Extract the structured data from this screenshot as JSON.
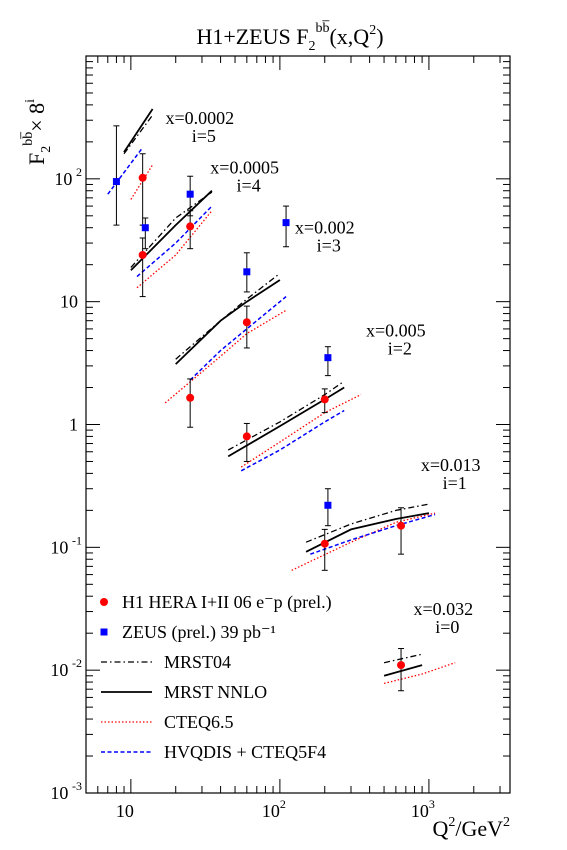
{
  "chart_data": {
    "type": "scatter",
    "title": "H1+ZEUS F",
    "title_sub": "2",
    "title_sup": "bb̅",
    "title_tail": "(x,Q",
    "title_tail_sup": "2",
    "title_end": ")",
    "ylabel_main": "F",
    "ylabel_sub": "2",
    "ylabel_sup": "bb̅",
    "ylabel_times": "× 8",
    "ylabel_exp": "i",
    "xlabel_main": "Q",
    "xlabel_sup": "2",
    "xlabel_mid": "/GeV",
    "xlabel_sup2": "2",
    "x_scale": "log",
    "y_scale": "log",
    "xlim": [
      5,
      3500
    ],
    "ylim": [
      0.001,
      1000
    ],
    "x_ticks": [
      {
        "value": 10,
        "base": "10",
        "exp": ""
      },
      {
        "value": 100,
        "base": "10",
        "exp": "2"
      },
      {
        "value": 1000,
        "base": "10",
        "exp": "3"
      }
    ],
    "y_ticks": [
      {
        "value": 0.001,
        "base": "10",
        "exp": "-3"
      },
      {
        "value": 0.01,
        "base": "10",
        "exp": "-2"
      },
      {
        "value": 0.1,
        "base": "10",
        "exp": "-1"
      },
      {
        "value": 1,
        "base": "1",
        "exp": ""
      },
      {
        "value": 10,
        "base": "10",
        "exp": ""
      },
      {
        "value": 100,
        "base": "10",
        "exp": "2"
      }
    ],
    "bin_labels": [
      {
        "x_text": "x=0.0002",
        "i_text": "i=5",
        "q2": 29,
        "y": 280
      },
      {
        "x_text": "x=0.0005",
        "i_text": "i=4",
        "q2": 58,
        "y": 111
      },
      {
        "x_text": "x=0.002",
        "i_text": "i=3",
        "q2": 200,
        "y": 36
      },
      {
        "x_text": "x=0.005",
        "i_text": "i=2",
        "q2": 600,
        "y": 5.2
      },
      {
        "x_text": "x=0.013",
        "i_text": "i=1",
        "q2": 1400,
        "y": 0.42
      },
      {
        "x_text": "x=0.032",
        "i_text": "i=0",
        "q2": 1250,
        "y": 0.028
      }
    ],
    "series": [
      {
        "name": "H1 HERA I+II 06 e⁻p  (prel.)",
        "marker": "circle",
        "color": "#ff0000",
        "points": [
          {
            "x": 12,
            "y": 102,
            "lo": 42,
            "hi": 160
          },
          {
            "x": 12,
            "y": 24,
            "lo": 11,
            "hi": 33
          },
          {
            "x": 25,
            "y": 41,
            "lo": 27,
            "hi": 55
          },
          {
            "x": 25,
            "y": 1.65,
            "lo": 0.95,
            "hi": 2.35
          },
          {
            "x": 60,
            "y": 6.8,
            "lo": 4.2,
            "hi": 9.2
          },
          {
            "x": 60,
            "y": 0.8,
            "lo": 0.5,
            "hi": 1.02
          },
          {
            "x": 200,
            "y": 1.6,
            "lo": 1.25,
            "hi": 1.95
          },
          {
            "x": 200,
            "y": 0.107,
            "lo": 0.065,
            "hi": 0.14
          },
          {
            "x": 650,
            "y": 0.15,
            "lo": 0.088,
            "hi": 0.21
          },
          {
            "x": 650,
            "y": 0.011,
            "lo": 0.0068,
            "hi": 0.015
          }
        ]
      },
      {
        "name": "ZEUS (prel.) 39 pb⁻¹",
        "marker": "square",
        "color": "#0000ff",
        "points": [
          {
            "x": 8,
            "y": 95,
            "lo": 42,
            "hi": 270
          },
          {
            "x": 12.5,
            "y": 40,
            "lo": 27,
            "hi": 48
          },
          {
            "x": 25,
            "y": 75,
            "lo": 50,
            "hi": 105
          },
          {
            "x": 60,
            "y": 17.5,
            "lo": 12,
            "hi": 25
          },
          {
            "x": 110,
            "y": 44,
            "lo": 28,
            "hi": 60
          },
          {
            "x": 210,
            "y": 3.5,
            "lo": 2.5,
            "hi": 4.3
          },
          {
            "x": 210,
            "y": 0.22,
            "lo": 0.15,
            "hi": 0.3
          }
        ]
      }
    ],
    "curves": [
      {
        "name": "MRST04",
        "style": "dashdot",
        "color": "#000000",
        "segments": [
          [
            [
              9,
              160
            ],
            [
              14,
              330
            ]
          ],
          [
            [
              10,
              19
            ],
            [
              20,
              48
            ],
            [
              35,
              78
            ]
          ],
          [
            [
              20,
              3.4
            ],
            [
              40,
              7
            ],
            [
              60,
              10.5
            ],
            [
              100,
              17
            ]
          ],
          [
            [
              45,
              0.62
            ],
            [
              100,
              1.05
            ],
            [
              200,
              1.75
            ],
            [
              270,
              2.25
            ]
          ],
          [
            [
              150,
              0.11
            ],
            [
              300,
              0.155
            ],
            [
              600,
              0.2
            ],
            [
              1000,
              0.225
            ]
          ],
          [
            [
              500,
              0.0115
            ],
            [
              900,
              0.0135
            ]
          ]
        ]
      },
      {
        "name": "MRST NNLO",
        "style": "solid",
        "color": "#000000",
        "segments": [
          [
            [
              9,
              165
            ],
            [
              14,
              370
            ]
          ],
          [
            [
              10,
              18
            ],
            [
              20,
              42
            ],
            [
              35,
              80
            ]
          ],
          [
            [
              20,
              3.1
            ],
            [
              40,
              7
            ],
            [
              60,
              10
            ],
            [
              100,
              15
            ]
          ],
          [
            [
              45,
              0.55
            ],
            [
              100,
              0.97
            ],
            [
              200,
              1.6
            ],
            [
              270,
              2.0
            ]
          ],
          [
            [
              150,
              0.092
            ],
            [
              300,
              0.14
            ],
            [
              600,
              0.17
            ],
            [
              1000,
              0.19
            ]
          ],
          [
            [
              500,
              0.009
            ],
            [
              900,
              0.011
            ]
          ]
        ]
      },
      {
        "name": "CTEQ6.5",
        "style": "dotted",
        "color": "#ff0000",
        "segments": [
          [
            [
              10,
              68
            ],
            [
              14,
              130
            ]
          ],
          [
            [
              11,
              13
            ],
            [
              20,
              24
            ],
            [
              35,
              55
            ]
          ],
          [
            [
              17,
              1.5
            ],
            [
              40,
              3.6
            ],
            [
              60,
              5.5
            ],
            [
              110,
              8.5
            ]
          ],
          [
            [
              55,
              0.45
            ],
            [
              100,
              0.72
            ],
            [
              200,
              1.25
            ],
            [
              350,
              1.75
            ]
          ],
          [
            [
              120,
              0.065
            ],
            [
              300,
              0.11
            ],
            [
              600,
              0.16
            ],
            [
              1100,
              0.19
            ]
          ],
          [
            [
              500,
              0.0078
            ],
            [
              900,
              0.0093
            ],
            [
              1500,
              0.0115
            ]
          ]
        ]
      },
      {
        "name": "HVQDIS + CTEQ5F4",
        "style": "dashed",
        "color": "#0000ff",
        "segments": [
          [
            [
              7,
              75
            ],
            [
              12,
              180
            ]
          ],
          [
            [
              11,
              16
            ],
            [
              20,
              30
            ],
            [
              35,
              60
            ]
          ],
          [
            [
              25,
              2.3
            ],
            [
              40,
              4
            ],
            [
              60,
              6
            ],
            [
              110,
              11
            ]
          ],
          [
            [
              55,
              0.42
            ],
            [
              100,
              0.62
            ],
            [
              200,
              1.05
            ],
            [
              270,
              1.3
            ]
          ],
          [
            [
              160,
              0.088
            ],
            [
              300,
              0.115
            ],
            [
              600,
              0.15
            ],
            [
              1100,
              0.185
            ]
          ]
        ]
      }
    ],
    "legend": {
      "placement": "bottom-left",
      "entries": [
        {
          "label": "H1 HERA I+II 06 e⁻p  (prel.)",
          "kind": "circle",
          "color": "#ff0000"
        },
        {
          "label": "ZEUS (prel.) 39 pb⁻¹",
          "kind": "square",
          "color": "#0000ff"
        },
        {
          "label": "MRST04",
          "kind": "dashdot",
          "color": "#000000"
        },
        {
          "label": "MRST NNLO",
          "kind": "solid",
          "color": "#000000"
        },
        {
          "label": "CTEQ6.5",
          "kind": "dotted",
          "color": "#ff0000"
        },
        {
          "label": "HVQDIS + CTEQ5F4",
          "kind": "dashed",
          "color": "#0000ff"
        }
      ]
    }
  }
}
